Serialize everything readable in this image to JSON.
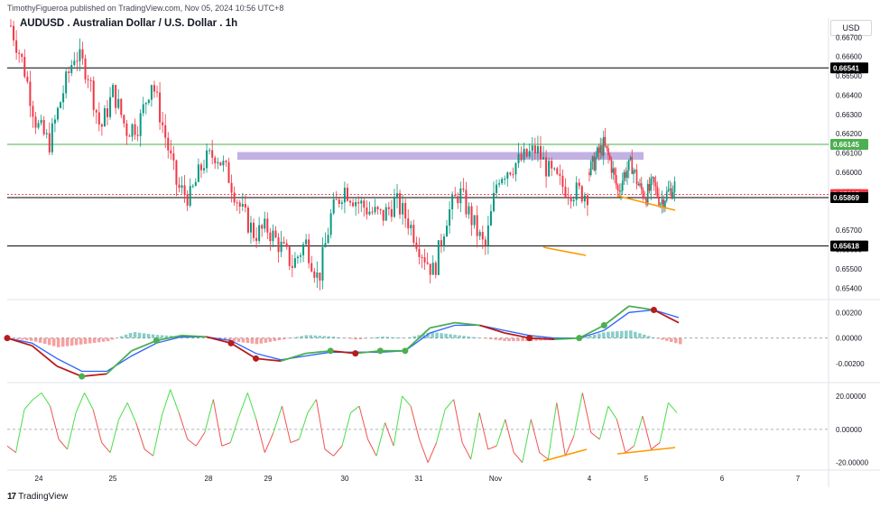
{
  "header": {
    "published": "TimothyFigueroa published on TradingView.com, Nov 05, 2024 10:56 UTC+8",
    "symbol": "AUDUSD . Australian Dollar / U.S. Dollar . 1h",
    "currency": "USD"
  },
  "footer": {
    "brand": "TradingView"
  },
  "chart_data": {
    "type": "candlestick",
    "x_ticks": [
      "24",
      "25",
      "28",
      "29",
      "30",
      "31",
      "Nov",
      "4",
      "5",
      "6",
      "7"
    ],
    "price_ticks": [
      "0.66700",
      "0.66600",
      "0.66500",
      "0.66400",
      "0.66300",
      "0.66200",
      "0.66100",
      "0.66000",
      "0.65900",
      "0.65700",
      "0.65600",
      "0.65500",
      "0.65400"
    ],
    "price_range": [
      0.6535,
      0.6679
    ],
    "levels": [
      {
        "label": "0.66541",
        "value": 0.66541,
        "color": "#000000"
      },
      {
        "label": "0.66145",
        "value": 0.66145,
        "color": "#4caf50"
      },
      {
        "label": "0.65885",
        "value": 0.65885,
        "color": "#f23645"
      },
      {
        "label": "0.65869",
        "value": 0.65869,
        "color": "#000000"
      },
      {
        "label": "0.65618",
        "value": 0.65618,
        "color": "#000000"
      }
    ],
    "resistance_zone": [
      0.66065,
      0.66105
    ],
    "price_close_path": [
      0.6676,
      0.6655,
      0.6625,
      0.6615,
      0.664,
      0.6662,
      0.6652,
      0.6622,
      0.6642,
      0.6622,
      0.6625,
      0.6648,
      0.662,
      0.6592,
      0.6587,
      0.6605,
      0.661,
      0.6598,
      0.658,
      0.6568,
      0.6571,
      0.6562,
      0.6552,
      0.6564,
      0.6544,
      0.6578,
      0.6592,
      0.6585,
      0.658,
      0.6577,
      0.6585,
      0.6575,
      0.656,
      0.6548,
      0.6577,
      0.659,
      0.6575,
      0.656,
      0.6598,
      0.6603,
      0.6607,
      0.6612,
      0.66,
      0.6593,
      0.659,
      0.6589
    ],
    "macd": {
      "ticks": [
        "0.00200",
        "0.00000",
        "-0.00200"
      ],
      "range": [
        -0.0032,
        0.0028
      ],
      "macd_line": [
        0.0,
        -0.0006,
        -0.0022,
        -0.003,
        -0.0028,
        -0.001,
        -0.0002,
        0.0002,
        0.0001,
        -0.0004,
        -0.0016,
        -0.0018,
        -0.0012,
        -0.001,
        -0.0012,
        -0.001,
        -0.001,
        0.0008,
        0.0012,
        0.001,
        0.0004,
        0.0,
        -0.0001,
        0.0,
        0.001,
        0.0025,
        0.0022,
        0.0012
      ],
      "signal_line": [
        0.0,
        -0.0004,
        -0.0016,
        -0.0026,
        -0.0026,
        -0.0014,
        -0.0004,
        0.0001,
        0.0001,
        -0.0002,
        -0.0012,
        -0.0017,
        -0.0014,
        -0.0011,
        -0.0011,
        -0.0011,
        -0.001,
        0.0004,
        0.001,
        0.001,
        0.0006,
        0.0002,
        0.0,
        0.0,
        0.0006,
        0.002,
        0.0022,
        0.0016
      ]
    },
    "oscillator": {
      "ticks": [
        "20.00000",
        "0.00000",
        "-20.00000"
      ],
      "range": [
        -24,
        26
      ],
      "values": [
        -10,
        -14,
        12,
        18,
        22,
        14,
        -6,
        -12,
        10,
        22,
        12,
        -8,
        -14,
        6,
        16,
        4,
        -12,
        -16,
        8,
        24,
        10,
        -6,
        -10,
        -2,
        18,
        -10,
        -8,
        8,
        22,
        6,
        -14,
        -2,
        14,
        -8,
        -6,
        10,
        18,
        -12,
        -16,
        -10,
        10,
        14,
        -6,
        -16,
        4,
        -10,
        20,
        14,
        -6,
        -20,
        -8,
        12,
        18,
        -8,
        -18,
        10,
        -12,
        -10,
        6,
        -14,
        -20,
        6,
        -14,
        -18,
        16,
        -16,
        -4,
        22,
        -2,
        -6,
        14,
        6,
        -14,
        -10,
        8,
        -12,
        -8,
        16,
        10
      ]
    },
    "title": "AUDUSD . Australian Dollar / U.S. Dollar . 1h"
  }
}
